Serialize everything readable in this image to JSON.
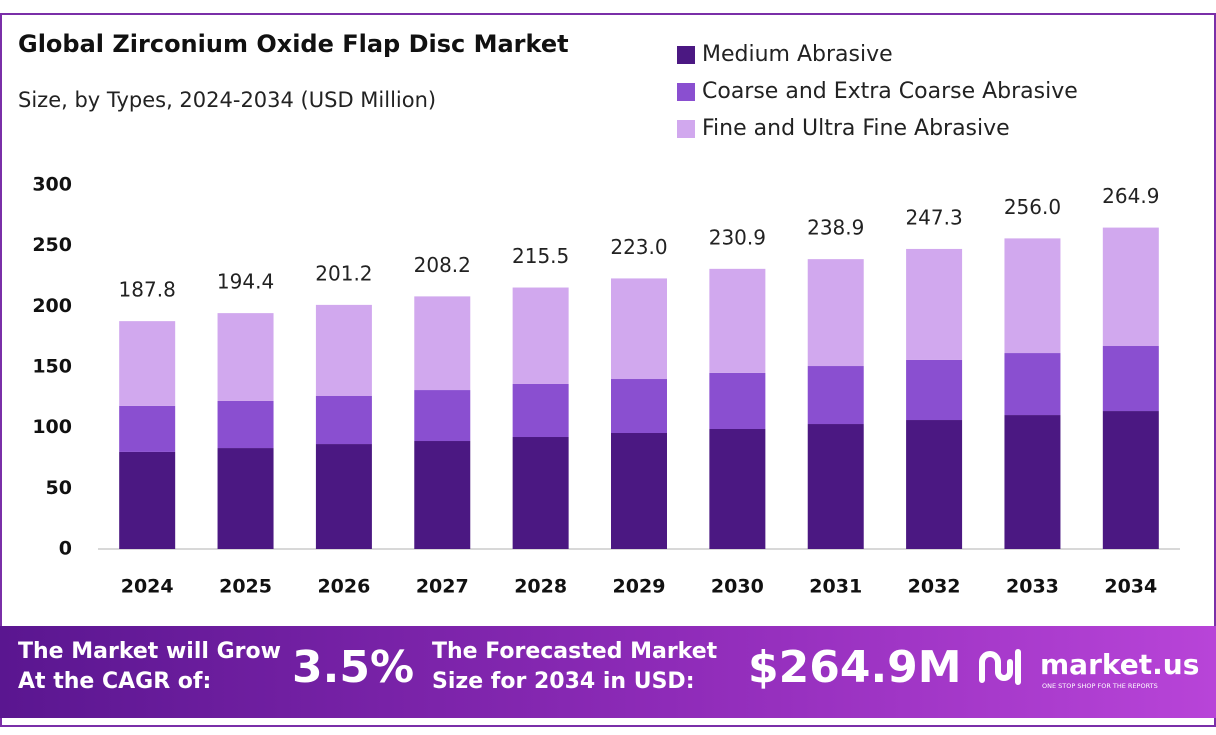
{
  "chart_data": {
    "type": "stacked_bar",
    "title": "Global Zirconium Oxide Flap Disc Market",
    "subtitle": "Size, by Types, 2024-2034 (USD Million)",
    "categories": [
      "2024",
      "2025",
      "2026",
      "2027",
      "2028",
      "2029",
      "2030",
      "2031",
      "2032",
      "2033",
      "2034"
    ],
    "series": [
      {
        "name": "Medium Abrasive",
        "color": "#4b1882",
        "values": [
          80,
          83.2,
          86.5,
          89,
          92.3,
          95.6,
          98.9,
          103,
          106.3,
          110.4,
          113.7
        ]
      },
      {
        "name": "Coarse and Extra Coarse Abrasive",
        "color": "#8a4fd0",
        "values": [
          38,
          38.8,
          39.6,
          42,
          43.7,
          44.5,
          46.2,
          47.8,
          49.5,
          51.1,
          53.6
        ]
      },
      {
        "name": "Fine and Ultra Fine Abrasive",
        "color": "#d1a8ee",
        "values": [
          69.8,
          72.4,
          75.1,
          77.2,
          79.5,
          82.9,
          85.8,
          88.1,
          91.5,
          94.5,
          97.6
        ]
      }
    ],
    "totals": {
      "values": [
        187.8,
        194.4,
        201.2,
        208.2,
        215.5,
        223,
        230.9,
        238.9,
        247.3,
        256,
        264.9
      ],
      "value_labels": [
        "187.8",
        "194.4",
        "201.2",
        "208.2",
        "215.5",
        "223.0",
        "230.9",
        "238.9",
        "247.3",
        "256.0",
        "264.9"
      ]
    },
    "ylim": [
      0,
      300
    ],
    "yticks": [
      0,
      50,
      100,
      150,
      200,
      250,
      300
    ],
    "grid": false,
    "legend": "top-right"
  },
  "footer": {
    "cagr_text_1": "The Market will Grow",
    "cagr_text_2": "At the CAGR of:",
    "cagr": "3.5%",
    "forecast_text_1": "The Forecasted Market",
    "forecast_text_2": "Size for 2034 in USD:",
    "forecast": "$264.9M",
    "brand": "market.us",
    "tagline": "ONE STOP SHOP FOR THE REPORTS"
  }
}
